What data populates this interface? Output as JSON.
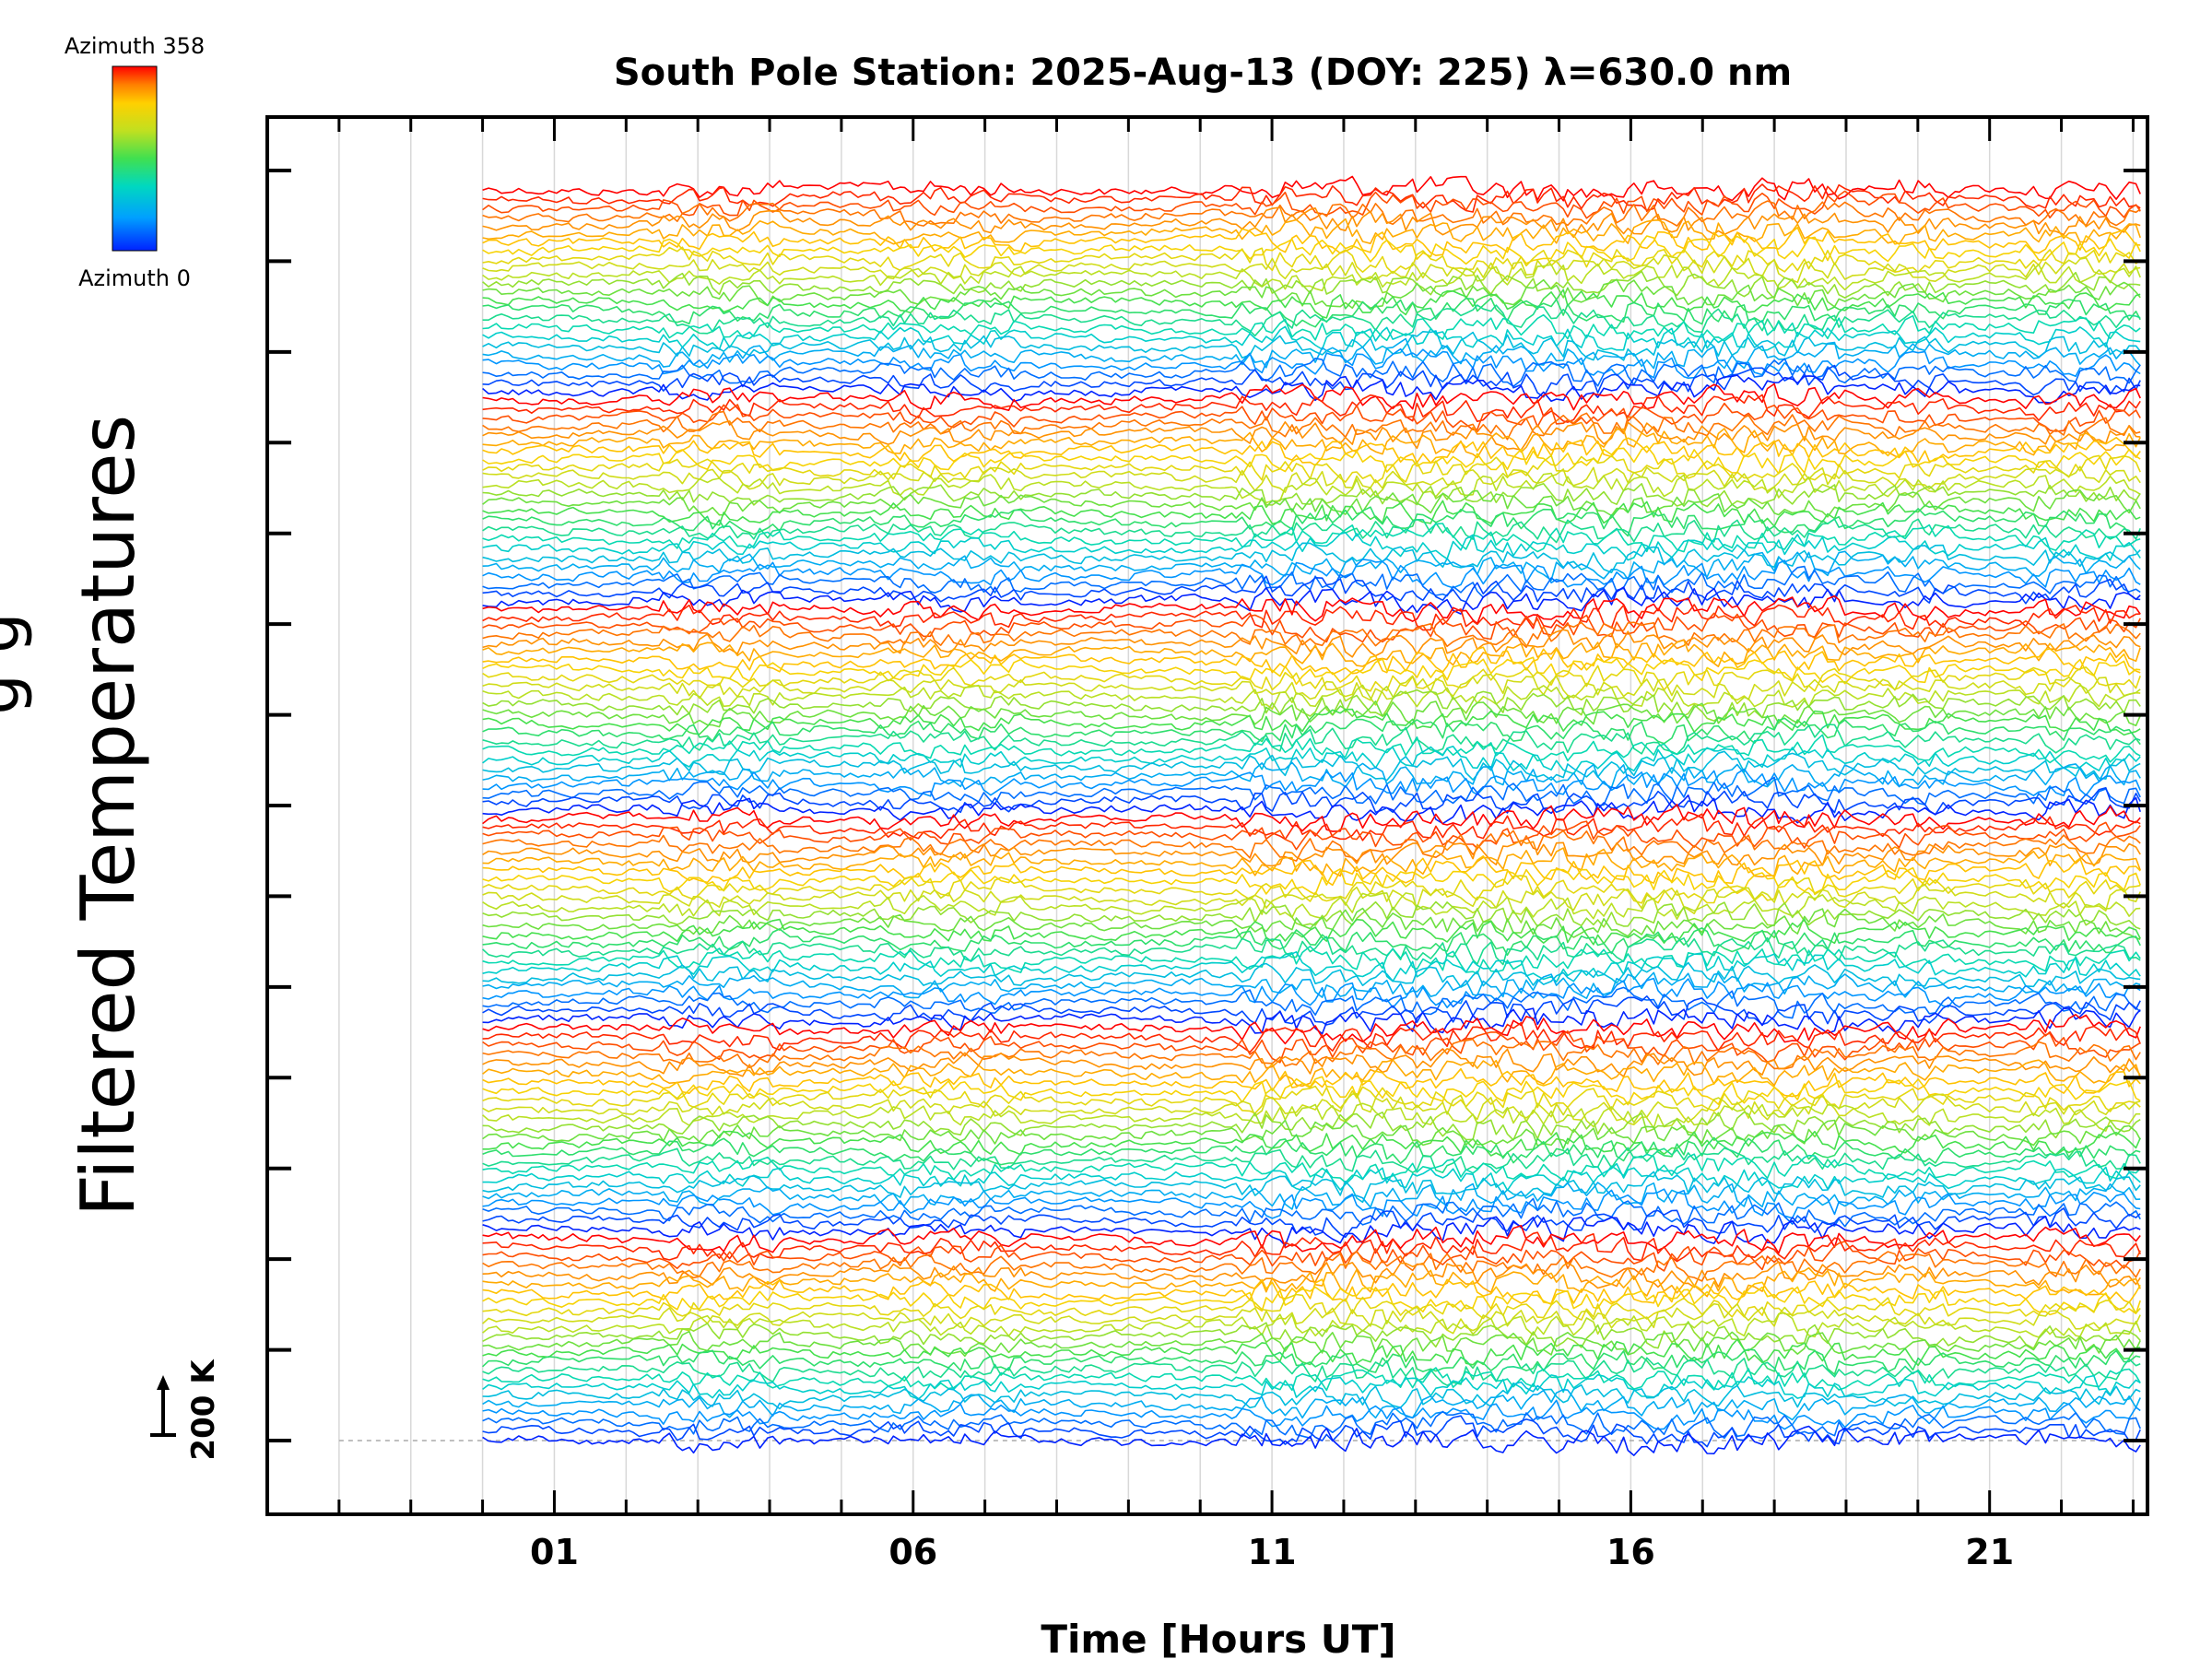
{
  "chart_data": {
    "type": "line",
    "title": "South Pole Station: 2025-Aug-13 (DOY: 225) λ=630.0 nm",
    "xlabel": "Time [Hours UT]",
    "ylabel": "Filtered Temperatures",
    "x_tick_labels": [
      "01",
      "06",
      "11",
      "16",
      "21"
    ],
    "x_tick_values": [
      1,
      6,
      11,
      16,
      21
    ],
    "xlim": [
      -3,
      23.2
    ],
    "data_start_hour": 0,
    "scale_bar_label": "200 K",
    "scale_bar_value": 200,
    "colorbar": {
      "top_label": "Azimuth 358",
      "bottom_label": "Azimuth 0",
      "min": 0,
      "max": 358
    },
    "y_major_ticks": 15,
    "n_traces": 144,
    "traces_per_sweep": 24,
    "colormap": [
      "#0022ff",
      "#00a0ff",
      "#00d8c0",
      "#40e050",
      "#c0e020",
      "#ffd000",
      "#ff8000",
      "#ff0000"
    ],
    "description_sweeps": "Stacked offset temperature traces; azimuth repeats every 24 traces, colored from blue (0) through green and yellow to red (358)."
  }
}
